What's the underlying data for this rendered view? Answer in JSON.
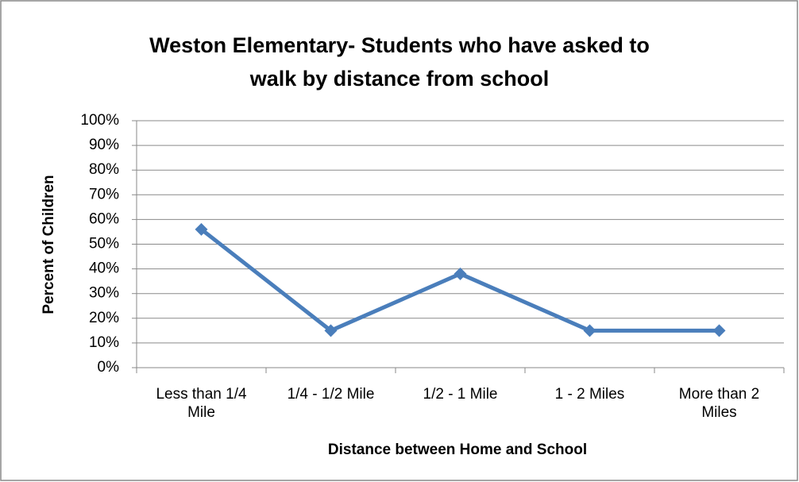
{
  "chart_data": {
    "type": "line",
    "title": "Weston Elementary- Students who have asked to walk by distance from school",
    "x_label": "Distance between Home and School",
    "y_label": "Percent of Children",
    "categories": [
      "Less than 1/4 Mile",
      "1/4 - 1/2 Mile",
      "1/2 - 1 Mile",
      "1 - 2 Miles",
      "More than 2 Miles"
    ],
    "series": [
      {
        "name": "Percent of Children",
        "color": "#4a7ebb",
        "values": [
          56,
          15,
          38,
          15,
          15
        ]
      }
    ],
    "ylim": [
      0,
      100
    ],
    "yticks": [
      {
        "value": 0,
        "label": "0%"
      },
      {
        "value": 10,
        "label": "10%"
      },
      {
        "value": 20,
        "label": "20%"
      },
      {
        "value": 30,
        "label": "30%"
      },
      {
        "value": 40,
        "label": "40%"
      },
      {
        "value": 50,
        "label": "50%"
      },
      {
        "value": 60,
        "label": "60%"
      },
      {
        "value": 70,
        "label": "70%"
      },
      {
        "value": 80,
        "label": "80%"
      },
      {
        "value": 90,
        "label": "90%"
      },
      {
        "value": 100,
        "label": "100%"
      }
    ],
    "grid": true,
    "legend": false
  }
}
